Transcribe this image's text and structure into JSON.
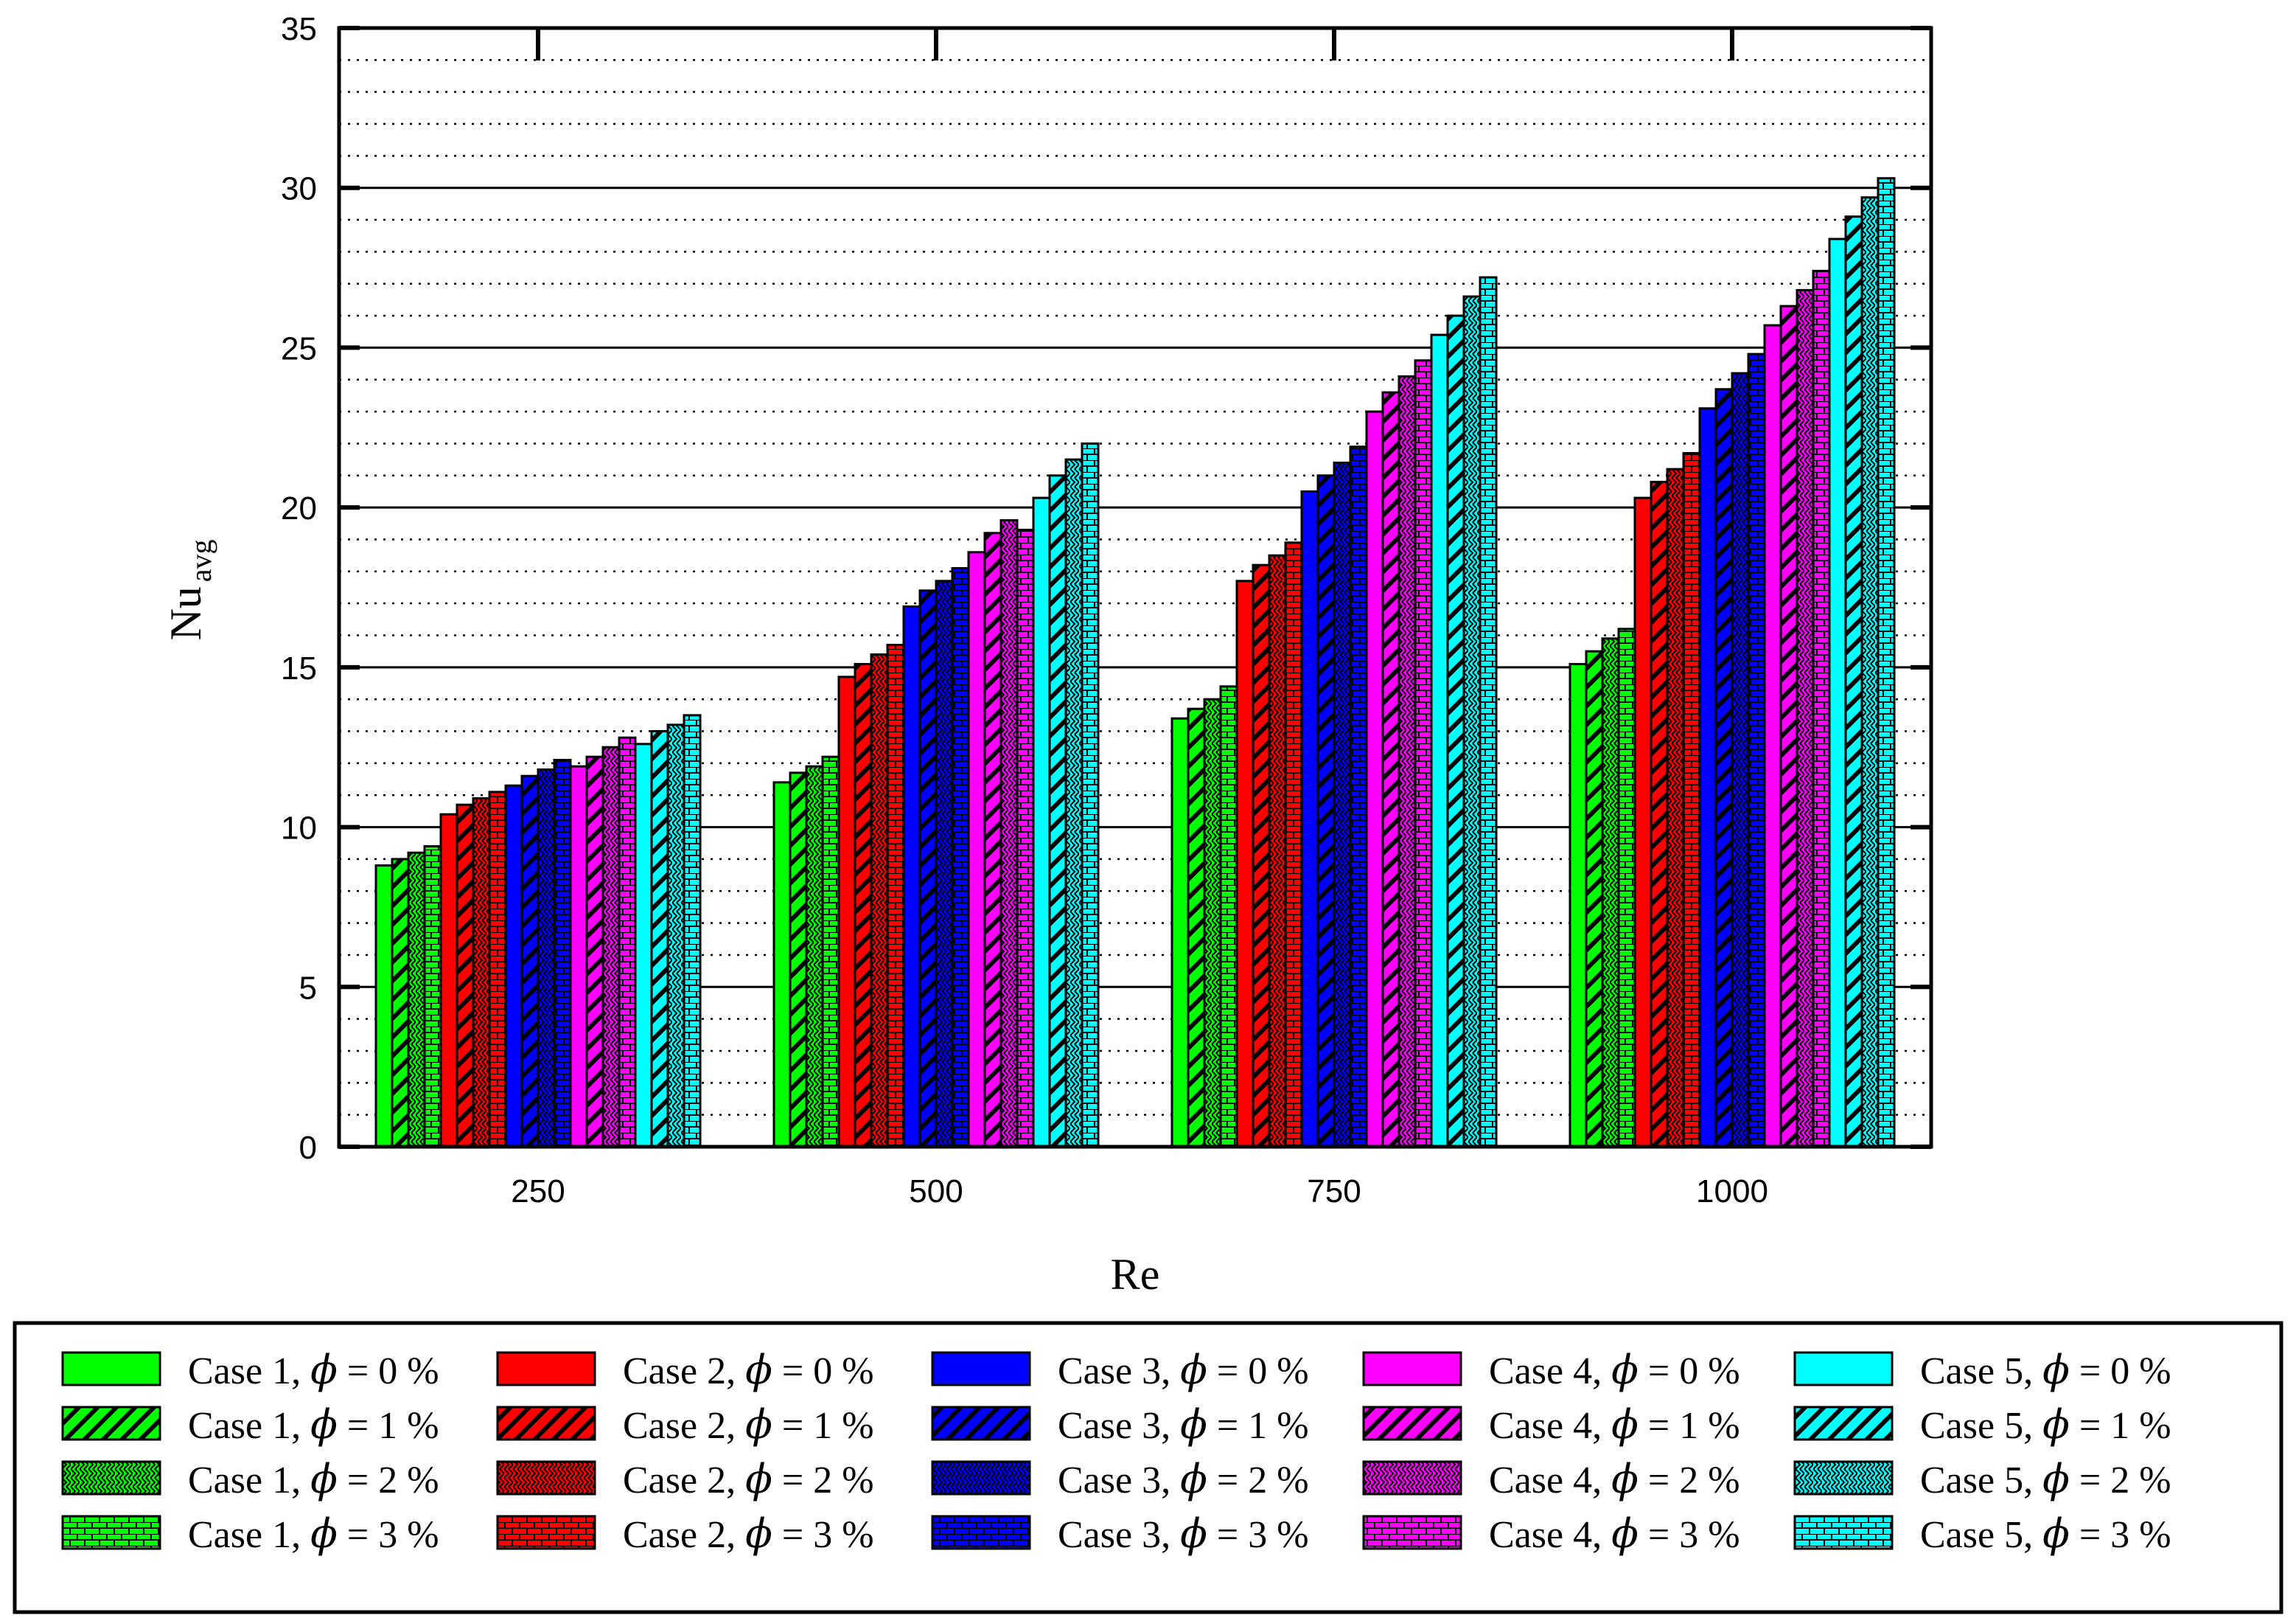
{
  "chart_data": {
    "type": "bar",
    "title": "",
    "xlabel": "Re",
    "ylabel_main": "Nu",
    "ylabel_sub": "avg",
    "categories": [
      "250",
      "500",
      "750",
      "1000"
    ],
    "ylim": [
      0,
      35
    ],
    "yticks": [
      "0",
      "5",
      "10",
      "15",
      "20",
      "25",
      "30",
      "35"
    ],
    "grid": true,
    "legend_position": "bottom",
    "phi_symbol": "ϕ",
    "colors": {
      "case1": "#00ff00",
      "case2": "#ff0000",
      "case3": "#0000ff",
      "case4": "#ff00ff",
      "case5": "#00ffff"
    },
    "series": [
      {
        "name": "Case 1, ϕ = 0 %",
        "case_label": "Case 1,",
        "phi_label": "= 0 %",
        "case": "case1",
        "pattern": "solid",
        "values": [
          8.8,
          11.4,
          13.4,
          15.1
        ]
      },
      {
        "name": "Case 1, ϕ = 1 %",
        "case_label": "Case 1,",
        "phi_label": "= 1 %",
        "case": "case1",
        "pattern": "hatch",
        "values": [
          9.0,
          11.7,
          13.7,
          15.5
        ]
      },
      {
        "name": "Case 1, ϕ = 2 %",
        "case_label": "Case 1,",
        "phi_label": "= 2 %",
        "case": "case1",
        "pattern": "weave",
        "values": [
          9.2,
          11.9,
          14.0,
          15.9
        ]
      },
      {
        "name": "Case 1, ϕ = 3 %",
        "case_label": "Case 1,",
        "phi_label": "= 3 %",
        "case": "case1",
        "pattern": "brick",
        "values": [
          9.4,
          12.2,
          14.4,
          16.2
        ]
      },
      {
        "name": "Case 2, ϕ = 0 %",
        "case_label": "Case 2,",
        "phi_label": "= 0 %",
        "case": "case2",
        "pattern": "solid",
        "values": [
          10.4,
          14.7,
          17.7,
          20.3
        ]
      },
      {
        "name": "Case 2, ϕ = 1 %",
        "case_label": "Case 2,",
        "phi_label": "= 1 %",
        "case": "case2",
        "pattern": "hatch",
        "values": [
          10.7,
          15.1,
          18.2,
          20.8
        ]
      },
      {
        "name": "Case 2, ϕ = 2 %",
        "case_label": "Case 2,",
        "phi_label": "= 2 %",
        "case": "case2",
        "pattern": "weave",
        "values": [
          10.9,
          15.4,
          18.5,
          21.2
        ]
      },
      {
        "name": "Case 2, ϕ = 3 %",
        "case_label": "Case 2,",
        "phi_label": "= 3 %",
        "case": "case2",
        "pattern": "brick",
        "values": [
          11.1,
          15.7,
          18.9,
          21.7
        ]
      },
      {
        "name": "Case 3, ϕ = 0 %",
        "case_label": "Case 3,",
        "phi_label": "= 0 %",
        "case": "case3",
        "pattern": "solid",
        "values": [
          11.3,
          16.9,
          20.5,
          23.1
        ]
      },
      {
        "name": "Case 3, ϕ = 1 %",
        "case_label": "Case 3,",
        "phi_label": "= 1 %",
        "case": "case3",
        "pattern": "hatch",
        "values": [
          11.6,
          17.4,
          21.0,
          23.7
        ]
      },
      {
        "name": "Case 3, ϕ = 2 %",
        "case_label": "Case 3,",
        "phi_label": "= 2 %",
        "case": "case3",
        "pattern": "weave",
        "values": [
          11.8,
          17.7,
          21.4,
          24.2
        ]
      },
      {
        "name": "Case 3, ϕ = 3 %",
        "case_label": "Case 3,",
        "phi_label": "= 3 %",
        "case": "case3",
        "pattern": "brick",
        "values": [
          12.1,
          18.1,
          21.9,
          24.8
        ]
      },
      {
        "name": "Case 4, ϕ = 0 %",
        "case_label": "Case 4,",
        "phi_label": "= 0 %",
        "case": "case4",
        "pattern": "solid",
        "values": [
          11.9,
          18.6,
          23.0,
          25.7
        ]
      },
      {
        "name": "Case 4, ϕ = 1 %",
        "case_label": "Case 4,",
        "phi_label": "= 1 %",
        "case": "case4",
        "pattern": "hatch",
        "values": [
          12.2,
          19.2,
          23.6,
          26.3
        ]
      },
      {
        "name": "Case 4, ϕ = 2 %",
        "case_label": "Case 4,",
        "phi_label": "= 2 %",
        "case": "case4",
        "pattern": "weave",
        "values": [
          12.5,
          19.6,
          24.1,
          26.8
        ]
      },
      {
        "name": "Case 4, ϕ = 3 %",
        "case_label": "Case 4,",
        "phi_label": "= 3 %",
        "case": "case4",
        "pattern": "brick",
        "values": [
          12.8,
          19.3,
          24.6,
          27.4
        ]
      },
      {
        "name": "Case 5, ϕ = 0 %",
        "case_label": "Case 5,",
        "phi_label": "= 0 %",
        "case": "case5",
        "pattern": "solid",
        "values": [
          12.6,
          20.3,
          25.4,
          28.4
        ]
      },
      {
        "name": "Case 5, ϕ = 1 %",
        "case_label": "Case 5,",
        "phi_label": "= 1 %",
        "case": "case5",
        "pattern": "hatch",
        "values": [
          13.0,
          21.0,
          26.0,
          29.1
        ]
      },
      {
        "name": "Case 5, ϕ = 2 %",
        "case_label": "Case 5,",
        "phi_label": "= 2 %",
        "case": "case5",
        "pattern": "weave",
        "values": [
          13.2,
          21.5,
          26.6,
          29.7
        ]
      },
      {
        "name": "Case 5, ϕ = 3 %",
        "case_label": "Case 5,",
        "phi_label": "= 3 %",
        "case": "case5",
        "pattern": "brick",
        "values": [
          13.5,
          22.0,
          27.2,
          30.3
        ]
      }
    ]
  }
}
